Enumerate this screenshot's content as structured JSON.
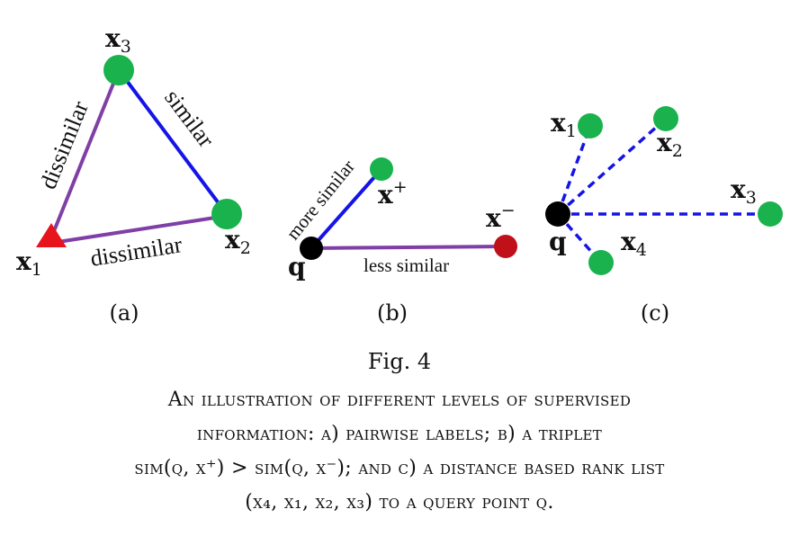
{
  "figure": {
    "colors": {
      "green_node": "#19b24d",
      "red_node": "#e8141c",
      "black_node": "#000000",
      "dark_red_node": "#c0101a",
      "purple_edge": "#7f3fa6",
      "blue_edge": "#1414e6"
    },
    "panel_a": {
      "label": "(a)",
      "nodes": {
        "x1": {
          "main": "x",
          "sub": "1"
        },
        "x2": {
          "main": "x",
          "sub": "2"
        },
        "x3": {
          "main": "x",
          "sub": "3"
        }
      },
      "edges": {
        "x1_x3": "dissimilar",
        "x3_x2": "similar",
        "x1_x2": "dissimilar"
      }
    },
    "panel_b": {
      "label": "(b)",
      "nodes": {
        "q": {
          "main": "q"
        },
        "xplus": {
          "main": "x",
          "sup": "+"
        },
        "xminus": {
          "main": "x",
          "sup": "−"
        }
      },
      "edges": {
        "q_xplus": "more similar",
        "q_xminus": "less similar"
      }
    },
    "panel_c": {
      "label": "(c)",
      "nodes": {
        "q": {
          "main": "q"
        },
        "x1": {
          "main": "x",
          "sub": "1"
        },
        "x2": {
          "main": "x",
          "sub": "2"
        },
        "x3": {
          "main": "x",
          "sub": "3"
        },
        "x4": {
          "main": "x",
          "sub": "4"
        }
      }
    }
  },
  "caption": {
    "figure_number": "Fig. 4",
    "lines": [
      "An illustration of different levels of supervised",
      "information: a) pairwise labels; b) a triplet",
      "sim(q, x⁺) > sim(q, x⁻); and c) a distance based rank list",
      "(x₄, x₁, x₂, x₃) to a query point q."
    ]
  }
}
